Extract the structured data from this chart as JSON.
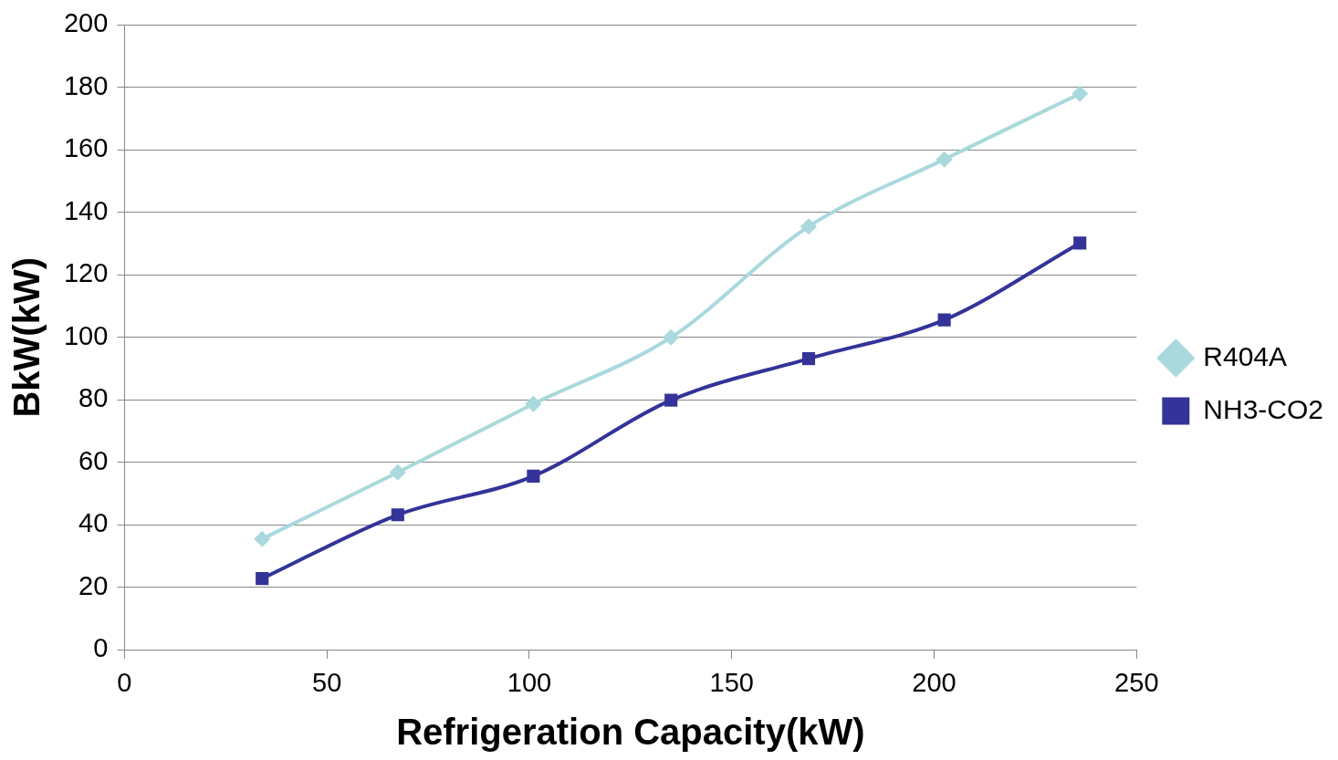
{
  "chart_data": {
    "type": "line",
    "xlabel": "Refrigeration Capacity(kW)",
    "ylabel": "BkW(kW)",
    "x": [
      34,
      67.5,
      101,
      135,
      169,
      202.5,
      236
    ],
    "series": [
      {
        "name": "R404A",
        "color": "#a9d9dc",
        "marker": "diamond",
        "values": [
          35.5,
          56.8,
          78.7,
          100,
          135.5,
          157,
          178
        ]
      },
      {
        "name": "NH3-CO2",
        "color": "#333399",
        "marker": "square",
        "values": [
          22.8,
          43.2,
          55.6,
          79.9,
          93.2,
          105.6,
          130.2
        ]
      }
    ],
    "xlim": [
      0,
      250
    ],
    "xticks": [
      0,
      50,
      100,
      150,
      200,
      250
    ],
    "ylim": [
      0,
      200
    ],
    "yticks": [
      0,
      20,
      40,
      60,
      80,
      100,
      120,
      140,
      160,
      180,
      200
    ],
    "grid": "y",
    "legend": "right",
    "line_style": "solid"
  }
}
